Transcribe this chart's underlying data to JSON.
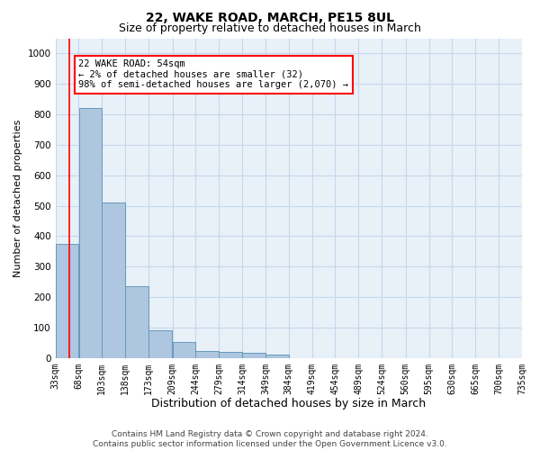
{
  "title": "22, WAKE ROAD, MARCH, PE15 8UL",
  "subtitle": "Size of property relative to detached houses in March",
  "xlabel": "Distribution of detached houses by size in March",
  "ylabel": "Number of detached properties",
  "annotation_line1": "22 WAKE ROAD: 54sqm",
  "annotation_line2": "← 2% of detached houses are smaller (32)",
  "annotation_line3": "98% of semi-detached houses are larger (2,070) →",
  "footer_line1": "Contains HM Land Registry data © Crown copyright and database right 2024.",
  "footer_line2": "Contains public sector information licensed under the Open Government Licence v3.0.",
  "bin_edges": [
    33,
    68,
    103,
    138,
    173,
    209,
    244,
    279,
    314,
    349,
    384,
    419,
    454,
    489,
    524,
    560,
    595,
    630,
    665,
    700,
    735
  ],
  "bar_heights": [
    375,
    820,
    512,
    237,
    92,
    53,
    22,
    20,
    16,
    11,
    0,
    0,
    0,
    0,
    0,
    0,
    0,
    0,
    0,
    0
  ],
  "bar_color": "#aec6df",
  "bar_edge_color": "#6699bb",
  "bar_edge_width": 0.7,
  "tick_labels": [
    "33sqm",
    "68sqm",
    "103sqm",
    "138sqm",
    "173sqm",
    "209sqm",
    "244sqm",
    "279sqm",
    "314sqm",
    "349sqm",
    "384sqm",
    "419sqm",
    "454sqm",
    "489sqm",
    "524sqm",
    "560sqm",
    "595sqm",
    "630sqm",
    "665sqm",
    "700sqm",
    "735sqm"
  ],
  "ylim": [
    0,
    1050
  ],
  "xlim": [
    33,
    735
  ],
  "yticks": [
    0,
    100,
    200,
    300,
    400,
    500,
    600,
    700,
    800,
    900,
    1000
  ],
  "red_line_x": 54,
  "grid_color": "#c5d8ec",
  "bg_color": "#e8f0f8",
  "title_fontsize": 10,
  "subtitle_fontsize": 9,
  "xlabel_fontsize": 9,
  "ylabel_fontsize": 8,
  "tick_fontsize": 7,
  "footer_fontsize": 6.5,
  "ann_fontsize": 7.5
}
